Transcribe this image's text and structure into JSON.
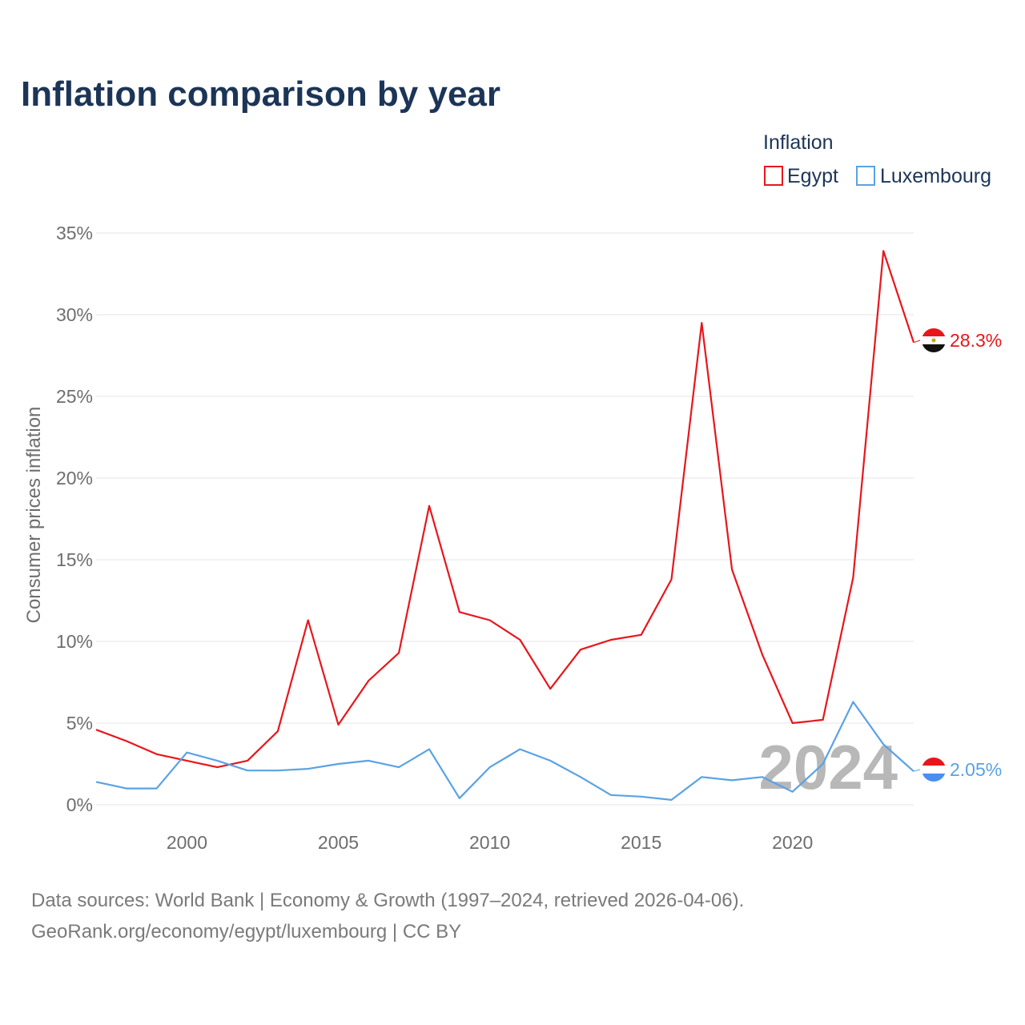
{
  "title": "Inflation comparison by year",
  "legend": {
    "title": "Inflation",
    "items": [
      {
        "name": "Egypt",
        "color": "#e8161b"
      },
      {
        "name": "Luxembourg",
        "color": "#5aa2e4"
      }
    ]
  },
  "watermark_year": "2024",
  "source": {
    "line1": "Data sources: World Bank | Economy & Growth (1997–2024, retrieved 2026-04-06).",
    "line2": "GeoRank.org/economy/egypt/luxembourg | CC BY"
  },
  "chart_data": {
    "type": "line",
    "title": "Inflation comparison by year",
    "xlabel": "",
    "ylabel": "Consumer prices inflation",
    "x": [
      1997,
      1998,
      1999,
      2000,
      2001,
      2002,
      2003,
      2004,
      2005,
      2006,
      2007,
      2008,
      2009,
      2010,
      2011,
      2012,
      2013,
      2014,
      2015,
      2016,
      2017,
      2018,
      2019,
      2020,
      2021,
      2022,
      2023,
      2024
    ],
    "xlim": [
      1997,
      2024
    ],
    "ylim": [
      0,
      35
    ],
    "x_ticks": [
      2000,
      2005,
      2010,
      2015,
      2020
    ],
    "x_tick_labels": [
      "2000",
      "2005",
      "2010",
      "2015",
      "2020"
    ],
    "y_ticks": [
      0,
      5,
      10,
      15,
      20,
      25,
      30,
      35
    ],
    "y_tick_labels": [
      "0%",
      "5%",
      "10%",
      "15%",
      "20%",
      "25%",
      "30%",
      "35%"
    ],
    "grid": true,
    "legend_position": "top-right",
    "series": [
      {
        "name": "Egypt",
        "color": "#e8161b",
        "end_label": "28.3%",
        "values": [
          4.6,
          3.9,
          3.1,
          2.7,
          2.3,
          2.7,
          4.5,
          11.3,
          4.9,
          7.6,
          9.3,
          18.3,
          11.8,
          11.3,
          10.1,
          7.1,
          9.5,
          10.1,
          10.4,
          13.8,
          29.5,
          14.4,
          9.2,
          5.0,
          5.2,
          13.9,
          33.9,
          28.3
        ]
      },
      {
        "name": "Luxembourg",
        "color": "#5aa2e4",
        "end_label": "2.05%",
        "values": [
          1.4,
          1.0,
          1.0,
          3.2,
          2.7,
          2.1,
          2.1,
          2.2,
          2.5,
          2.7,
          2.3,
          3.4,
          0.4,
          2.3,
          3.4,
          2.7,
          1.7,
          0.6,
          0.5,
          0.3,
          1.7,
          1.5,
          1.7,
          0.8,
          2.5,
          6.3,
          3.7,
          2.05
        ]
      }
    ]
  }
}
